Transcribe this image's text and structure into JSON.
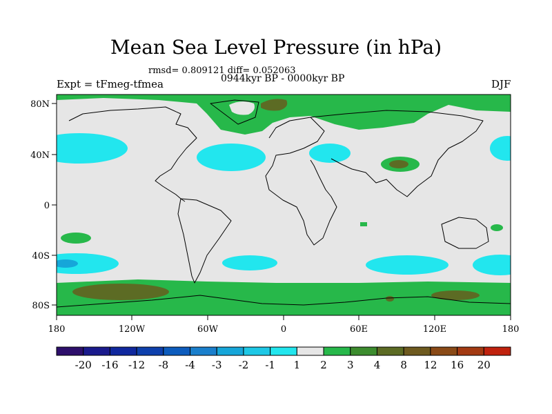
{
  "title": "Mean Sea Level Pressure (in hPa)",
  "stats": "rmsd= 0.809121 diff= 0.052063",
  "period": "0944kyr BP - 0000kyr BP",
  "experiment": "Expt = tFmeg-tfmea",
  "season": "DJF",
  "axes": {
    "x_ticks": [
      "180",
      "120W",
      "60W",
      "0",
      "60E",
      "120E",
      "180"
    ],
    "y_ticks": [
      "80N",
      "40N",
      "0",
      "40S",
      "80S"
    ]
  },
  "colorbar": {
    "labels": [
      "-20",
      "-16",
      "-12",
      "-8",
      "-4",
      "-3",
      "-2",
      "-1",
      "1",
      "2",
      "3",
      "4",
      "8",
      "12",
      "16",
      "20"
    ],
    "colors": [
      "#2d0f6b",
      "#1a1a8c",
      "#10289e",
      "#0e40ac",
      "#0d5cbd",
      "#1a7fcc",
      "#16a6d9",
      "#1ec8e6",
      "#22e6ee",
      "#e6e6e6",
      "#27b84a",
      "#3c8c2e",
      "#5c6b24",
      "#6e5a1f",
      "#8a4a17",
      "#a33a12",
      "#c0220e"
    ]
  },
  "map_fields": {
    "background": "#e6e6e6",
    "positive_2": "#27b84a",
    "positive_3": "#5c6b24",
    "negative_1": "#22e6ee",
    "negative_2": "#16a6d9"
  }
}
